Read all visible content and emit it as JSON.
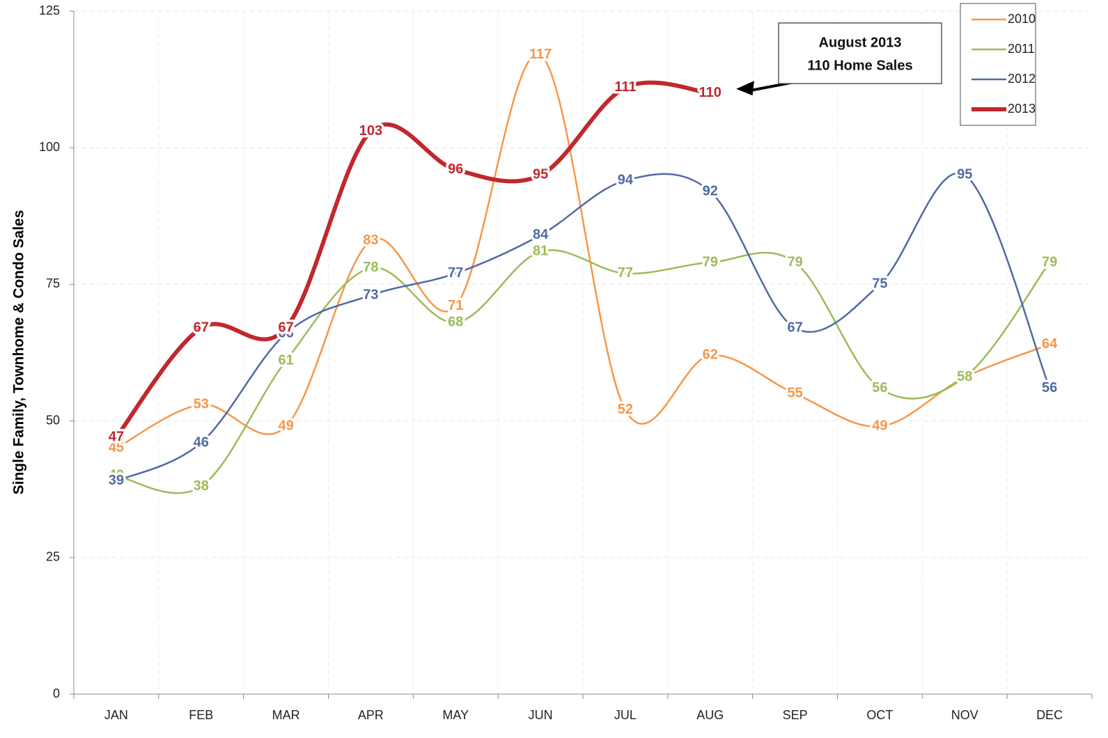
{
  "chart_data": {
    "type": "line",
    "y_axis_label": "Single Family, Townhome & Condo Sales",
    "categories": [
      "JAN",
      "FEB",
      "MAR",
      "APR",
      "MAY",
      "JUN",
      "JUL",
      "AUG",
      "SEP",
      "OCT",
      "NOV",
      "DEC"
    ],
    "ylim": [
      0,
      125
    ],
    "yticks": [
      0,
      25,
      50,
      75,
      100,
      125
    ],
    "grid": true,
    "smooth": true,
    "legend": "top-right",
    "annotation": {
      "lines": [
        "August 2013",
        "110 Home Sales"
      ],
      "category_index": 7,
      "series_index": 3
    },
    "series": [
      {
        "name": "2010",
        "color": "#f79646",
        "width": 2.5,
        "values": [
          45,
          53,
          49,
          83,
          71,
          117,
          52,
          62,
          55,
          49,
          58,
          64
        ],
        "value_labels": [
          "45",
          "53",
          "49",
          "83",
          "71",
          "117",
          "52",
          "62",
          "55",
          "49",
          null,
          "64"
        ]
      },
      {
        "name": "2011",
        "color": "#9bbb59",
        "width": 2.5,
        "values": [
          40,
          38,
          61,
          78,
          68,
          81,
          77,
          79,
          79,
          56,
          58,
          79
        ]
      },
      {
        "name": "2012",
        "color": "#4f6aa3",
        "width": 2.5,
        "values": [
          39,
          46,
          66,
          73,
          77,
          84,
          94,
          92,
          67,
          75,
          95,
          56
        ]
      },
      {
        "name": "2013",
        "color": "#c0282d",
        "width": 6,
        "values": [
          47,
          67,
          67,
          103,
          96,
          95,
          111,
          110,
          null,
          null,
          null,
          null
        ]
      }
    ]
  }
}
